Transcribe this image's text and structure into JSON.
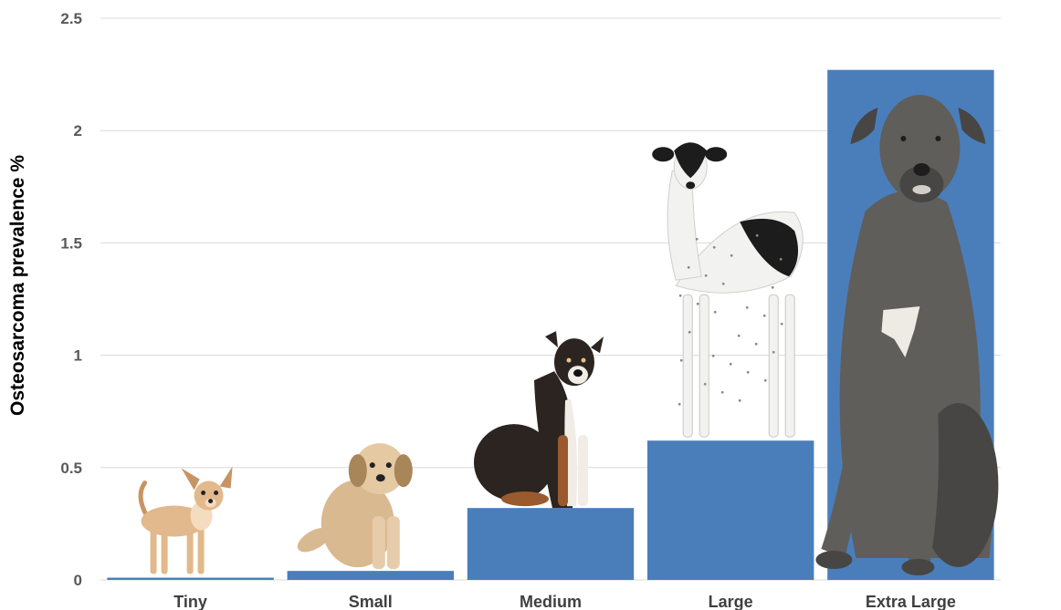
{
  "chart_data": {
    "type": "bar",
    "title": "",
    "xlabel": "",
    "ylabel": "Osteosarcoma prevalence %",
    "categories": [
      "Tiny",
      "Small",
      "Medium",
      "Large",
      "Extra Large"
    ],
    "values": [
      0.01,
      0.04,
      0.32,
      0.62,
      2.27
    ],
    "ylim": [
      0,
      2.5
    ],
    "yticks": [
      "0",
      "0.5",
      "1",
      "1.5",
      "2",
      "2.5"
    ],
    "grid": true,
    "bar_color": "#4a7ebb",
    "legend": "none",
    "bar_images": [
      "chihuahua",
      "shih-tzu mix",
      "mixed-breed dog",
      "greyhound",
      "great dane"
    ]
  }
}
